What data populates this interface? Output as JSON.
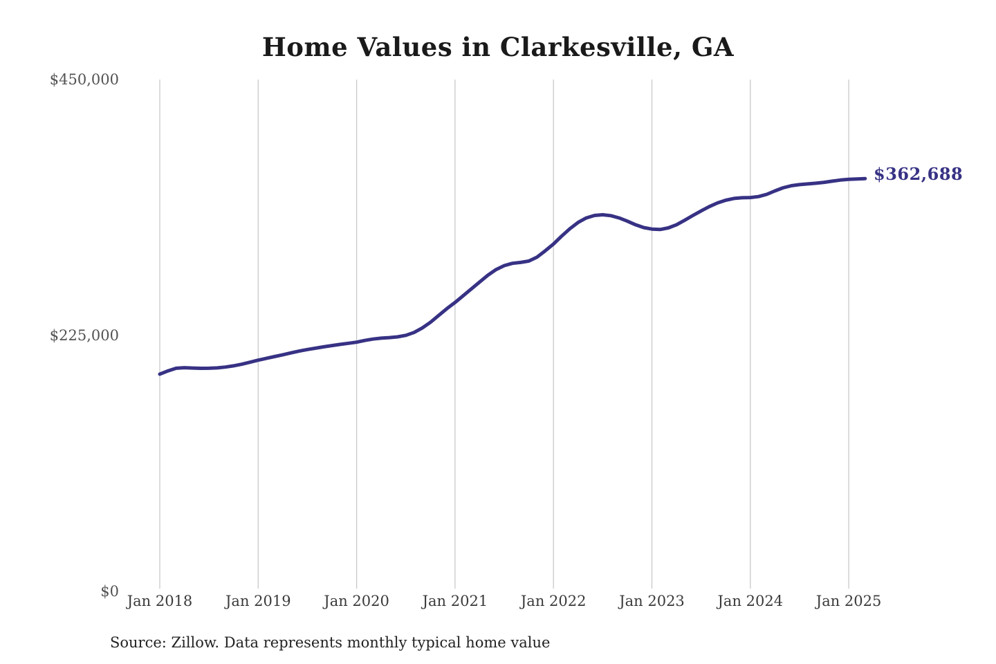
{
  "title": "Home Values in Clarkesville, GA",
  "source_note": "Source: Zillow. Data represents monthly typical home value",
  "latest_value_label": "$362,688",
  "colors": {
    "line": "#373284",
    "grid": "#c9c9c9",
    "title_text": "#1a1a1a",
    "y_axis_text": "#525252",
    "x_axis_text": "#3a3a3a",
    "source_text": "#222222",
    "background": "#ffffff"
  },
  "chart_data": {
    "type": "line",
    "title": "Home Values in Clarkesville, GA",
    "xlabel": "",
    "ylabel": "",
    "ylim": [
      0,
      450000
    ],
    "y_ticks": [
      450000,
      225000,
      0
    ],
    "y_tick_labels": [
      "$450,000",
      "$225,000",
      "$0"
    ],
    "x_tick_labels": [
      "Jan 2018",
      "Jan 2019",
      "Jan 2020",
      "Jan 2021",
      "Jan 2022",
      "Jan 2023",
      "Jan 2024",
      "Jan 2025"
    ],
    "x_start_month": "2018-01",
    "x_end_month": "2025-03",
    "grid": "vertical-only",
    "legend": "none",
    "final_value": 362688,
    "series": [
      {
        "name": "Monthly typical home value",
        "monthly_values": [
          190300,
          193200,
          195500,
          196000,
          195700,
          195400,
          195500,
          195800,
          196500,
          197600,
          199000,
          200800,
          202600,
          204200,
          205800,
          207400,
          209000,
          210600,
          212000,
          213200,
          214400,
          215500,
          216500,
          217500,
          218500,
          220000,
          221200,
          222000,
          222500,
          223200,
          224500,
          227000,
          231000,
          236000,
          242000,
          248000,
          253500,
          259500,
          265500,
          271500,
          277500,
          282500,
          286000,
          288000,
          288800,
          290000,
          293500,
          299000,
          305000,
          312000,
          318500,
          324000,
          328000,
          330200,
          330800,
          330000,
          328000,
          325200,
          322000,
          319500,
          318200,
          317800,
          319200,
          322000,
          326000,
          330200,
          334200,
          338000,
          341200,
          343600,
          345200,
          345800,
          346000,
          346800,
          348800,
          351800,
          354600,
          356400,
          357400,
          358000,
          358600,
          359400,
          360400,
          361400,
          362000,
          362400,
          362688
        ]
      }
    ]
  }
}
